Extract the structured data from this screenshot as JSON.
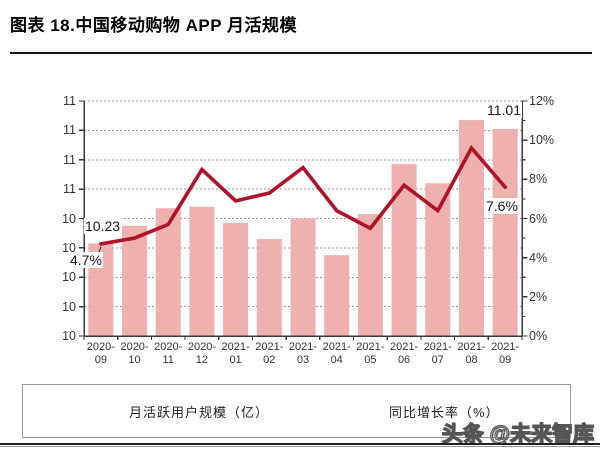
{
  "header": {
    "title": "图表 18.中国移动购物 APP 月活规模"
  },
  "watermark": "头条 @未来智库",
  "legend": {
    "items": [
      {
        "label": "月活跃用户规模（亿）",
        "swatch": "bar-swatch",
        "color": "#EFB0B0"
      },
      {
        "label": "同比增长率（%）",
        "swatch": "line-swatch",
        "color": "#B01228"
      }
    ]
  },
  "colors": {
    "bar": "#EFB0B0",
    "line": "#B01228",
    "gridline": "#999999",
    "axis": "#3a3a3a",
    "text": "#333333"
  },
  "chart_data": {
    "type": "bar",
    "title": "中国移动购物APP月活规模",
    "categories": [
      "2020-09",
      "2020-10",
      "2020-11",
      "2020-12",
      "2021-01",
      "2021-02",
      "2021-03",
      "2021-04",
      "2021-05",
      "2021-06",
      "2021-07",
      "2021-08",
      "2021-09"
    ],
    "series": [
      {
        "name": "月活跃用户规模（亿）",
        "type": "bar",
        "axis": "left",
        "values": [
          10.23,
          10.35,
          10.47,
          10.48,
          10.37,
          10.26,
          10.4,
          10.15,
          10.43,
          10.77,
          10.64,
          11.07,
          11.01
        ]
      },
      {
        "name": "同比增长率（%）",
        "type": "line",
        "axis": "right",
        "values": [
          4.7,
          5.0,
          5.7,
          8.5,
          6.9,
          7.3,
          8.6,
          6.4,
          5.5,
          7.7,
          6.4,
          9.6,
          7.6
        ]
      }
    ],
    "left_axis": {
      "min": 9.6,
      "max": 11.2,
      "step": 0.2,
      "tick_labels": [
        "11",
        "11",
        "11",
        "11",
        "10",
        "10",
        "10",
        "10",
        "10"
      ]
    },
    "right_axis": {
      "min": 0,
      "max": 12,
      "step": 2,
      "tick_labels": [
        "12%",
        "10%",
        "8%",
        "6%",
        "4%",
        "2%",
        "0%"
      ]
    },
    "grid": "horizontal-dotted",
    "legend_position": "bottom",
    "annotations": [
      {
        "text": "10.23",
        "target": "first-bar"
      },
      {
        "text": "4.7%",
        "target": "first-line-point"
      },
      {
        "text": "11.01",
        "target": "last-bar"
      },
      {
        "text": "7.6%",
        "target": "last-line-point"
      }
    ]
  }
}
